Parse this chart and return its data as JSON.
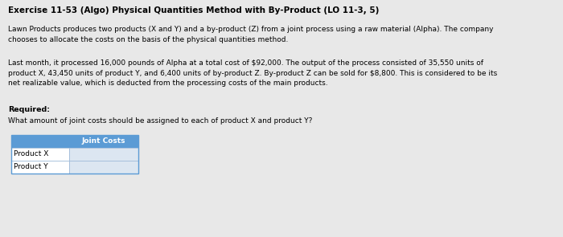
{
  "title": "Exercise 11-53 (Algo) Physical Quantities Method with By-Product (LO 11-3, 5)",
  "paragraph1": "Lawn Products produces two products (X and Y) and a by-product (Z) from a joint process using a raw material (Alpha). The company\nchooses to allocate the costs on the basis of the physical quantities method.",
  "paragraph2": "Last month, it processed 16,000 pounds of Alpha at a total cost of $92,000. The output of the process consisted of 35,550 units of\nproduct X, 43,450 units of product Y, and 6,400 units of by-product Z. By-product Z can be sold for $8,800. This is considered to be its\nnet realizable value, which is deducted from the processing costs of the main products.",
  "required_label": "Required:",
  "required_question": "What amount of joint costs should be assigned to each of product X and product Y?",
  "table_header": "Joint Costs",
  "table_rows": [
    "Product X",
    "Product Y"
  ],
  "bg_color": "#e8e8e8",
  "table_header_bg": "#5b9bd5",
  "table_cell_bg": "#dce6f1",
  "title_fontsize": 7.5,
  "body_fontsize": 6.5,
  "bold_fontsize": 6.8
}
